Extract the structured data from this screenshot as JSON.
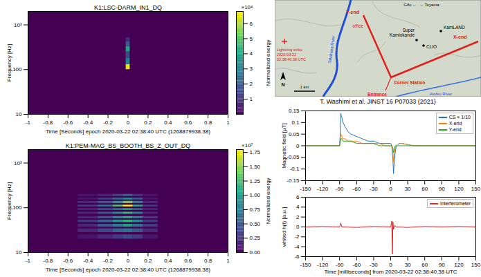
{
  "chart_data": [
    {
      "type": "heatmap",
      "title": "K1:LSC-DARM_IN1_DQ",
      "x_label": "Time [Seconds] epoch 2020-03-22 02:38:40 UTC (1268879938.38)",
      "y_label": "Frequency [Hz]",
      "xlim": [
        -1,
        1
      ],
      "xticks": [
        -1,
        -0.8,
        -0.6,
        -0.4,
        -0.2,
        0,
        0.2,
        0.4,
        0.6,
        0.8,
        1
      ],
      "ylim": [
        10,
        2000
      ],
      "yticks": [
        10,
        100,
        {
          "value": 1000,
          "label": "10³"
        }
      ],
      "log": "y",
      "colorbar_label": "Normalized energy",
      "colorbar_multiplier": "×10⁴",
      "zlim": [
        0,
        6.8
      ],
      "zticks": [
        1,
        2,
        3,
        4,
        5,
        6
      ],
      "time_edges": [
        -0.02,
        0.02
      ],
      "bands": [
        {
          "f": [
            100,
            130
          ],
          "values": [
            6.5
          ]
        },
        {
          "f": [
            130,
            180
          ],
          "values": [
            3.0
          ]
        },
        {
          "f": [
            180,
            250
          ],
          "values": [
            1.5
          ]
        },
        {
          "f": [
            250,
            330
          ],
          "values": [
            4.0
          ]
        },
        {
          "f": [
            330,
            420
          ],
          "values": [
            2.0
          ]
        },
        {
          "f": [
            420,
            520
          ],
          "values": [
            0.8
          ]
        }
      ]
    },
    {
      "type": "heatmap",
      "title": "K1:PEM-MAG_BS_BOOTH_BS_Z_OUT_DQ",
      "x_label": "Time [Seconds] epoch 2020-03-22 02:38:40 UTC (1268879938.38)",
      "y_label": "Frequency [Hz]",
      "xlim": [
        -1,
        1
      ],
      "xticks": [
        -1,
        -0.8,
        -0.6,
        -0.4,
        -0.2,
        0,
        0.2,
        0.4,
        0.6,
        0.8,
        1
      ],
      "ylim": [
        10,
        2000
      ],
      "yticks": [
        10,
        100,
        {
          "value": 1000,
          "label": "10³"
        }
      ],
      "log": "y",
      "colorbar_label": "Normalized energy",
      "colorbar_multiplier": "×10⁷",
      "zlim": [
        0,
        1.8
      ],
      "zticks": [
        {
          "value": 0,
          "label": "0.00"
        },
        {
          "value": 0.25,
          "label": "0.25"
        },
        {
          "value": 0.5,
          "label": "0.50"
        },
        {
          "value": 0.75,
          "label": "0.75"
        },
        {
          "value": 1,
          "label": "1.00"
        },
        {
          "value": 1.25,
          "label": "1.25"
        },
        {
          "value": 1.5,
          "label": "1.50"
        },
        {
          "value": 1.75,
          "label": "1.75"
        }
      ],
      "time_edges": [
        -0.5,
        -0.3,
        -0.15,
        -0.05,
        0.05,
        0.15,
        0.3
      ],
      "bands": [
        {
          "f": [
            20,
            25
          ],
          "values": [
            0.1,
            0.2,
            0.3,
            0.4,
            0.3,
            0.1
          ]
        },
        {
          "f": [
            28,
            34
          ],
          "values": [
            0.2,
            0.4,
            0.6,
            0.7,
            0.5,
            0.2
          ]
        },
        {
          "f": [
            37,
            43
          ],
          "values": [
            0.2,
            0.5,
            0.8,
            1.0,
            0.7,
            0.3
          ]
        },
        {
          "f": [
            47,
            53
          ],
          "values": [
            0.3,
            0.6,
            1.0,
            1.2,
            0.9,
            0.3
          ]
        },
        {
          "f": [
            57,
            64
          ],
          "values": [
            0.2,
            0.5,
            0.9,
            1.1,
            0.8,
            0.3
          ]
        },
        {
          "f": [
            72,
            80
          ],
          "values": [
            0.2,
            0.5,
            0.9,
            1.2,
            0.8,
            0.2
          ]
        },
        {
          "f": [
            88,
            96
          ],
          "values": [
            0.2,
            0.5,
            0.8,
            1.1,
            0.7,
            0.2
          ]
        },
        {
          "f": [
            105,
            115
          ],
          "values": [
            0.3,
            0.7,
            1.3,
            1.75,
            1.1,
            0.3
          ]
        },
        {
          "f": [
            125,
            140
          ],
          "values": [
            0.2,
            0.5,
            1.0,
            1.4,
            0.8,
            0.2
          ]
        },
        {
          "f": [
            150,
            165
          ],
          "values": [
            0.1,
            0.3,
            0.6,
            0.9,
            0.5,
            0.1
          ]
        },
        {
          "f": [
            180,
            200
          ],
          "values": [
            0.1,
            0.2,
            0.4,
            0.6,
            0.3,
            0.1
          ]
        }
      ]
    },
    {
      "type": "line",
      "y_label": "Magnetic field [μT]",
      "legend": "top-right",
      "xlim": [
        -150,
        150
      ],
      "xticks": [
        -150,
        -120,
        -90,
        -60,
        -30,
        0,
        30,
        60,
        90,
        120,
        150
      ],
      "ylim": [
        -0.15,
        0.15
      ],
      "yticks": [
        -0.15,
        -0.1,
        -0.05,
        0,
        0.05,
        0.1,
        0.15
      ],
      "x": [
        -150,
        -100,
        -90,
        -89,
        -88,
        -86,
        -84,
        -80,
        -75,
        -70,
        -60,
        -50,
        -40,
        -30,
        -20,
        -10,
        0,
        2,
        4,
        5,
        6,
        8,
        10,
        15,
        20,
        40,
        60,
        90,
        120,
        150
      ],
      "series": [
        {
          "name": "CS × 1/10",
          "color": "#1f77b4",
          "values": [
            0,
            0,
            0,
            0.05,
            0.14,
            0.12,
            0.1,
            0.08,
            0.06,
            0.05,
            0.04,
            0.03,
            0.02,
            0.02,
            0.01,
            0.01,
            0.01,
            0,
            -0.06,
            -0.12,
            -0.08,
            -0.03,
            0,
            0.01,
            0.01,
            0,
            0,
            0,
            0,
            0
          ]
        },
        {
          "name": "X-end",
          "color": "#ff7f0e",
          "values": [
            0,
            0,
            0,
            0.02,
            0.05,
            0.04,
            0.03,
            0.03,
            0.02,
            0.02,
            0.02,
            0.01,
            0.01,
            0.01,
            0.01,
            0,
            0,
            0,
            -0.03,
            -0.07,
            -0.04,
            -0.01,
            0,
            0.01,
            0.01,
            0,
            0,
            0,
            0,
            0
          ]
        },
        {
          "name": "Y-end",
          "color": "#2ca02c",
          "values": [
            0,
            0,
            0,
            0.01,
            0.03,
            0.03,
            0.02,
            0.02,
            0.02,
            0.02,
            0.01,
            0.01,
            0.01,
            0.01,
            0,
            0,
            0,
            0,
            -0.01,
            -0.03,
            -0.02,
            0,
            0,
            0,
            0,
            0,
            0,
            0,
            0,
            0
          ]
        }
      ]
    },
    {
      "type": "line",
      "y_label": "whited h(t) [a.u.]",
      "x_label": "Time [milliseconds] from 2020-03-22 02:38:40.38 UTC",
      "legend": "top-right",
      "xlim": [
        -150,
        150
      ],
      "xticks": [
        -150,
        -120,
        -90,
        -60,
        -30,
        0,
        30,
        60,
        90,
        120,
        150
      ],
      "ylim": [
        -6,
        6
      ],
      "yticks": [
        -6,
        -4,
        -2,
        0,
        2,
        4,
        6
      ],
      "x": [
        -150,
        -120,
        -90,
        -88,
        -86,
        -60,
        -30,
        0,
        2,
        3,
        4,
        5,
        7,
        10,
        30,
        60,
        90,
        120,
        150
      ],
      "series": [
        {
          "name": "Interferometer",
          "color": "#d62728",
          "values": [
            0,
            0.1,
            0,
            0.8,
            0,
            -0.1,
            0.1,
            0,
            1.2,
            -5.5,
            1.0,
            -0.5,
            0.3,
            0,
            -0.1,
            0.1,
            0,
            0.1,
            0
          ]
        }
      ]
    }
  ],
  "map": {
    "labels": {
      "y_end": "Y-end",
      "x_end": "X-end",
      "office": "office",
      "gifu": "Gifu ←",
      "toyama": "→ Toyama",
      "super_kamiokande": "Super Kamiokande",
      "kamland": "KamLAND",
      "clio": "CLIO",
      "corner": "Corner Station",
      "entrance": "Entrance",
      "takahara": "Takahara River",
      "atotsu": "Atotsu River",
      "north": "N",
      "scale": "1 km",
      "lightning": [
        "Lightning strike",
        "2020-03-22 02:38:40.38 UTC"
      ]
    }
  },
  "citation": "T. Washimi et al. JINST 16 P07033 (2021)"
}
